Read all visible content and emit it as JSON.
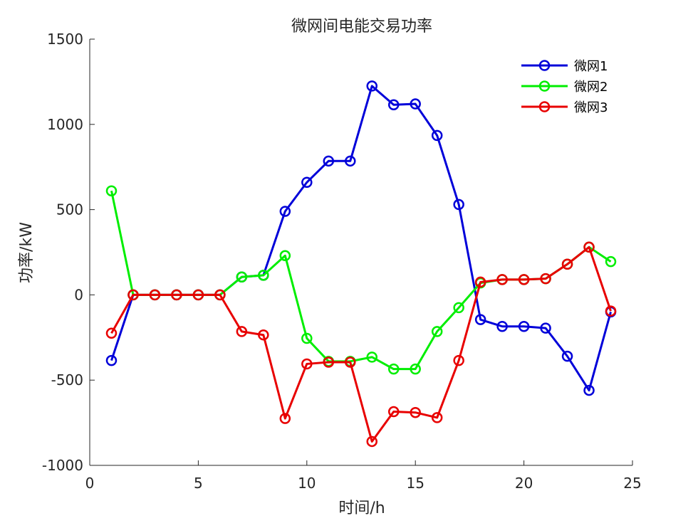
{
  "chart_data": {
    "type": "line",
    "title": "微网间电能交易功率",
    "xlabel": "时间/h",
    "ylabel": "功率/kW",
    "xlim": [
      0,
      25
    ],
    "ylim": [
      -1000,
      1500
    ],
    "xticks": [
      0,
      5,
      10,
      15,
      20,
      25
    ],
    "yticks": [
      -1000,
      -500,
      0,
      500,
      1000,
      1500
    ],
    "grid": false,
    "legend_position": "top-right",
    "x": [
      1,
      2,
      3,
      4,
      5,
      6,
      7,
      8,
      9,
      10,
      11,
      12,
      13,
      14,
      15,
      16,
      17,
      18,
      19,
      20,
      21,
      22,
      23,
      24
    ],
    "series": [
      {
        "name": "微网1",
        "color": "#0000d9",
        "marker": "circle",
        "values": [
          -385,
          0,
          0,
          0,
          0,
          0,
          105,
          115,
          490,
          660,
          785,
          785,
          1225,
          1115,
          1120,
          935,
          530,
          -145,
          -185,
          -185,
          -195,
          -360,
          -560,
          -100
        ]
      },
      {
        "name": "微网2",
        "color": "#00ee00",
        "marker": "circle",
        "values": [
          610,
          0,
          0,
          0,
          0,
          0,
          105,
          115,
          230,
          -255,
          -390,
          -390,
          -365,
          -435,
          -435,
          -215,
          -75,
          70,
          90,
          90,
          95,
          180,
          280,
          195
        ]
      },
      {
        "name": "微网3",
        "color": "#e80000",
        "marker": "circle",
        "values": [
          -225,
          0,
          0,
          0,
          0,
          0,
          -215,
          -235,
          -725,
          -405,
          -395,
          -395,
          -860,
          -685,
          -690,
          -720,
          -385,
          75,
          90,
          90,
          95,
          180,
          280,
          -95
        ]
      }
    ]
  }
}
